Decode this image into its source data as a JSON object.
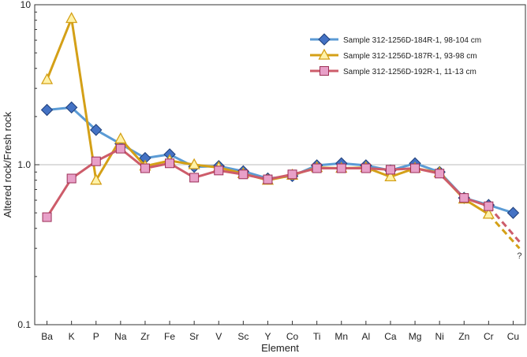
{
  "chart_data": {
    "type": "line",
    "y_scale": "log",
    "ylim": [
      0.1,
      10
    ],
    "ytick_values": [
      0.1,
      1.0,
      10
    ],
    "ytick_labels": [
      "0.1",
      "1.0",
      "10"
    ],
    "reference_line": 1.0,
    "grid": false,
    "legend_position": "top-right",
    "xlabel": "Element",
    "ylabel": "Altered rock/Fresh rock",
    "categories": [
      "Ba",
      "K",
      "P",
      "Na",
      "Zr",
      "Fe",
      "Sr",
      "V",
      "Sc",
      "Y",
      "Co",
      "Ti",
      "Mn",
      "Al",
      "Ca",
      "Mg",
      "Ni",
      "Zn",
      "Cr",
      "Cu"
    ],
    "series": [
      {
        "name": "Sample 312-1256D-184R-1, 98-104 cm",
        "color": "#5b9bd5",
        "marker_fill": "#4472c4",
        "marker": "diamond",
        "values": [
          2.2,
          2.28,
          1.65,
          1.35,
          1.1,
          1.16,
          0.97,
          0.98,
          0.91,
          0.82,
          0.85,
          0.99,
          1.02,
          0.99,
          0.92,
          1.02,
          0.9,
          0.62,
          0.56,
          0.5
        ],
        "dashed_tail": null
      },
      {
        "name": "Sample 312-1256D-187R-1, 93-98 cm",
        "color": "#d4a017",
        "marker_fill": "#fff2a8",
        "marker": "triangle",
        "values": [
          3.4,
          8.2,
          0.8,
          1.45,
          0.98,
          1.06,
          1.0,
          0.96,
          0.88,
          0.8,
          0.86,
          0.96,
          0.95,
          0.96,
          0.84,
          0.95,
          0.89,
          0.61,
          0.49,
          null
        ],
        "dashed_tail": [
          {
            "x": "Cr",
            "y": 0.49
          },
          {
            "x": "Cu",
            "y": 0.3
          }
        ]
      },
      {
        "name": "Sample 312-1256D-192R-1, 11-13 cm",
        "color": "#cd5c6a",
        "marker_fill": "#e8a0c8",
        "marker": "square",
        "values": [
          0.47,
          0.82,
          1.05,
          1.26,
          0.95,
          1.02,
          0.83,
          0.92,
          0.87,
          0.81,
          0.87,
          0.95,
          0.95,
          0.95,
          0.93,
          0.95,
          0.88,
          0.62,
          0.55,
          null
        ],
        "dashed_tail": [
          {
            "x": "Cr",
            "y": 0.55
          },
          {
            "x": "Cu",
            "y": 0.33
          }
        ]
      }
    ],
    "annotations": [
      {
        "text": "?",
        "x": "Cu",
        "y": 0.29
      }
    ]
  }
}
